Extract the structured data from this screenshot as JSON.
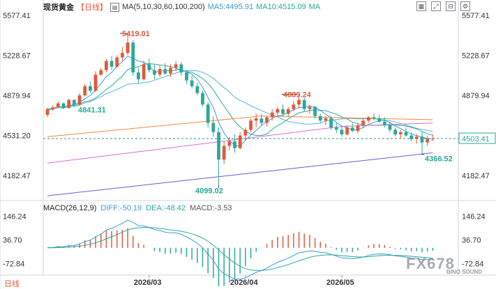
{
  "header": {
    "name": "现货黄金",
    "period": "【日线】",
    "ma_label": "MA(5,10,30,60,100,200)",
    "ma5": "MA5:4495.91",
    "ma10": "MA10:4515.09",
    "ma": "MA"
  },
  "toolbar": {
    "icons": [
      "grid-icon",
      "expand-icon",
      "restore-icon",
      "settings-icon"
    ]
  },
  "price_axis": {
    "ticks": [
      "5577.41",
      "5228.67",
      "4879.94",
      "4531.20",
      "4182.47"
    ]
  },
  "macd": {
    "label": "MACD(26,12,9)",
    "dif": "DIFF:-50.19",
    "dea": "DEA:-48.42",
    "macd": "MACD:-3.53",
    "ticks": [
      "146.24",
      "36.70",
      "-72.84"
    ]
  },
  "last_price": "4503.41",
  "annotations": {
    "high": "5419.01",
    "low": "4099.02",
    "a": "4841.31",
    "b": "4889.24",
    "c": "4366.52"
  },
  "x_labels": [
    "2026/03",
    "2026/04",
    "2026/05"
  ],
  "corner_label": "日线",
  "watermark": "FX678",
  "watermark2": "BINO SOUND",
  "colors": {
    "up": "#e0593a",
    "down": "#2aa89a",
    "ma5": "#3a9bd6",
    "ma10": "#2aa89a",
    "ma30": "#55b0e0",
    "ma60": "#f08a3c",
    "ma100": "#d46fd6",
    "ma200": "#6d5bd6"
  },
  "chart_data": {
    "type": "candlestick",
    "y_range": [
      4000,
      5650
    ],
    "candles": [
      [
        4710,
        4772,
        4690,
        4760
      ],
      [
        4760,
        4795,
        4745,
        4775
      ],
      [
        4775,
        4830,
        4770,
        4810
      ],
      [
        4810,
        4820,
        4760,
        4770
      ],
      [
        4770,
        4850,
        4765,
        4840
      ],
      [
        4840,
        4845,
        4780,
        4800
      ],
      [
        4800,
        4900,
        4790,
        4880
      ],
      [
        4880,
        4980,
        4870,
        4960
      ],
      [
        4960,
        5000,
        4900,
        4920
      ],
      [
        4920,
        5090,
        4910,
        5060
      ],
      [
        5060,
        5120,
        5050,
        5100
      ],
      [
        5100,
        5200,
        5080,
        5180
      ],
      [
        5180,
        5220,
        5100,
        5130
      ],
      [
        5130,
        5230,
        5120,
        5210
      ],
      [
        5210,
        5300,
        5180,
        5250
      ],
      [
        5250,
        5419,
        5230,
        5340
      ],
      [
        5340,
        5360,
        5050,
        5080
      ],
      [
        5080,
        5120,
        4980,
        5020
      ],
      [
        5020,
        5180,
        5010,
        5150
      ],
      [
        5150,
        5200,
        5080,
        5100
      ],
      [
        5100,
        5150,
        5020,
        5060
      ],
      [
        5060,
        5140,
        5040,
        5110
      ],
      [
        5110,
        5160,
        5060,
        5070
      ],
      [
        5070,
        5150,
        5040,
        5120
      ],
      [
        5120,
        5180,
        5090,
        5150
      ],
      [
        5150,
        5170,
        5050,
        5080
      ],
      [
        5080,
        5100,
        4980,
        5010
      ],
      [
        5010,
        5050,
        4940,
        4960
      ],
      [
        4960,
        4990,
        4880,
        4900
      ],
      [
        4900,
        4920,
        4780,
        4800
      ],
      [
        4800,
        4820,
        4600,
        4640
      ],
      [
        4640,
        4700,
        4520,
        4560
      ],
      [
        4560,
        4600,
        4099,
        4320
      ],
      [
        4320,
        4480,
        4280,
        4440
      ],
      [
        4440,
        4520,
        4400,
        4480
      ],
      [
        4480,
        4540,
        4380,
        4420
      ],
      [
        4420,
        4560,
        4410,
        4530
      ],
      [
        4530,
        4600,
        4490,
        4580
      ],
      [
        4580,
        4680,
        4560,
        4660
      ],
      [
        4660,
        4720,
        4600,
        4680
      ],
      [
        4680,
        4720,
        4620,
        4640
      ],
      [
        4640,
        4700,
        4610,
        4690
      ],
      [
        4690,
        4760,
        4660,
        4730
      ],
      [
        4730,
        4780,
        4700,
        4760
      ],
      [
        4760,
        4800,
        4700,
        4720
      ],
      [
        4720,
        4780,
        4690,
        4760
      ],
      [
        4760,
        4830,
        4740,
        4800
      ],
      [
        4800,
        4889,
        4770,
        4840
      ],
      [
        4840,
        4860,
        4740,
        4760
      ],
      [
        4760,
        4800,
        4720,
        4780
      ],
      [
        4780,
        4790,
        4680,
        4700
      ],
      [
        4700,
        4720,
        4640,
        4660
      ],
      [
        4660,
        4700,
        4620,
        4680
      ],
      [
        4680,
        4700,
        4580,
        4600
      ],
      [
        4600,
        4640,
        4550,
        4580
      ],
      [
        4580,
        4620,
        4520,
        4540
      ],
      [
        4540,
        4620,
        4530,
        4600
      ],
      [
        4600,
        4640,
        4560,
        4570
      ],
      [
        4570,
        4640,
        4550,
        4620
      ],
      [
        4620,
        4680,
        4600,
        4660
      ],
      [
        4660,
        4700,
        4640,
        4690
      ],
      [
        4690,
        4720,
        4660,
        4680
      ],
      [
        4680,
        4710,
        4640,
        4650
      ],
      [
        4650,
        4690,
        4600,
        4620
      ],
      [
        4620,
        4650,
        4560,
        4580
      ],
      [
        4580,
        4600,
        4520,
        4540
      ],
      [
        4540,
        4580,
        4500,
        4560
      ],
      [
        4560,
        4600,
        4520,
        4530
      ],
      [
        4530,
        4560,
        4480,
        4500
      ],
      [
        4500,
        4540,
        4460,
        4520
      ],
      [
        4520,
        4560,
        4366,
        4470
      ],
      [
        4470,
        4530,
        4440,
        4500
      ],
      [
        4500,
        4540,
        4480,
        4503
      ]
    ]
  }
}
